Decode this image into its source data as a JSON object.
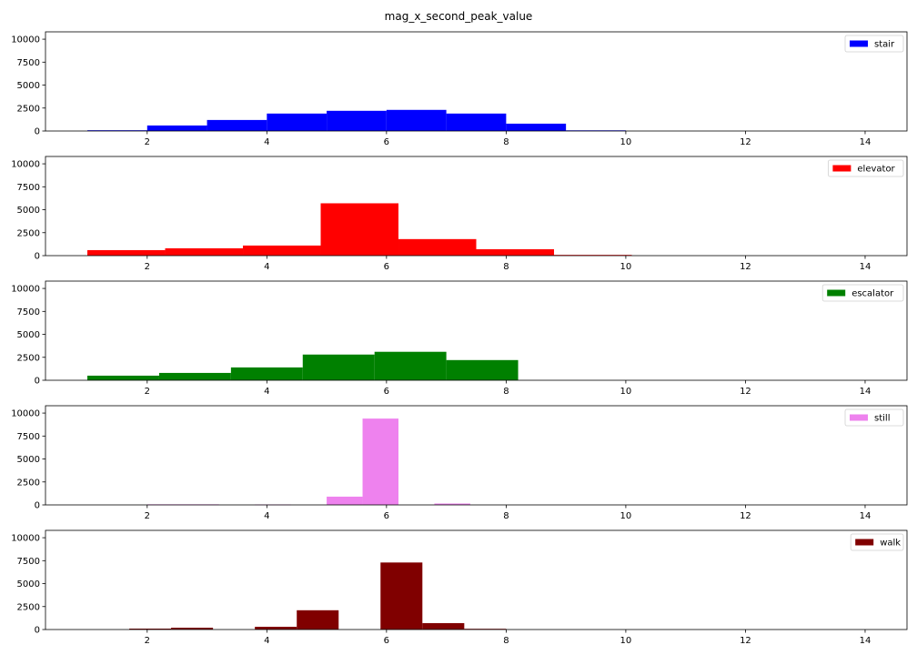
{
  "title": "mag_x_second_peak_value",
  "chart_data": [
    {
      "type": "bar",
      "title": "mag_x_second_peak_value",
      "series_name": "stair",
      "color": "#0000ff",
      "xlim": [
        0.3,
        14.7
      ],
      "ylim": [
        0,
        10800
      ],
      "xticks": [
        2,
        4,
        6,
        8,
        10,
        12,
        14
      ],
      "yticks": [
        0,
        2500,
        5000,
        7500,
        10000
      ],
      "legend_position": "top-right",
      "bins": [
        {
          "x0": 1.0,
          "x1": 2.0,
          "value": 80
        },
        {
          "x0": 2.0,
          "x1": 3.0,
          "value": 600
        },
        {
          "x0": 3.0,
          "x1": 4.0,
          "value": 1200
        },
        {
          "x0": 4.0,
          "x1": 5.0,
          "value": 1900
        },
        {
          "x0": 5.0,
          "x1": 6.0,
          "value": 2200
        },
        {
          "x0": 6.0,
          "x1": 7.0,
          "value": 2300
        },
        {
          "x0": 7.0,
          "x1": 8.0,
          "value": 1900
        },
        {
          "x0": 8.0,
          "x1": 9.0,
          "value": 800
        },
        {
          "x0": 9.0,
          "x1": 10.0,
          "value": 70
        }
      ]
    },
    {
      "type": "bar",
      "series_name": "elevator",
      "color": "#ff0000",
      "xlim": [
        0.3,
        14.7
      ],
      "ylim": [
        0,
        10800
      ],
      "xticks": [
        2,
        4,
        6,
        8,
        10,
        12,
        14
      ],
      "yticks": [
        0,
        2500,
        5000,
        7500,
        10000
      ],
      "legend_position": "top-right",
      "bins": [
        {
          "x0": 1.0,
          "x1": 2.3,
          "value": 600
        },
        {
          "x0": 2.3,
          "x1": 3.6,
          "value": 800
        },
        {
          "x0": 3.6,
          "x1": 4.9,
          "value": 1100
        },
        {
          "x0": 4.9,
          "x1": 6.2,
          "value": 5700
        },
        {
          "x0": 6.2,
          "x1": 7.5,
          "value": 1800
        },
        {
          "x0": 7.5,
          "x1": 8.8,
          "value": 700
        },
        {
          "x0": 8.8,
          "x1": 10.1,
          "value": 80
        }
      ]
    },
    {
      "type": "bar",
      "series_name": "escalator",
      "color": "#008000",
      "xlim": [
        0.3,
        14.7
      ],
      "ylim": [
        0,
        10800
      ],
      "xticks": [
        2,
        4,
        6,
        8,
        10,
        12,
        14
      ],
      "yticks": [
        0,
        2500,
        5000,
        7500,
        10000
      ],
      "legend_position": "top-right",
      "bins": [
        {
          "x0": 1.0,
          "x1": 2.2,
          "value": 500
        },
        {
          "x0": 2.2,
          "x1": 3.4,
          "value": 800
        },
        {
          "x0": 3.4,
          "x1": 4.6,
          "value": 1400
        },
        {
          "x0": 4.6,
          "x1": 5.8,
          "value": 2800
        },
        {
          "x0": 5.8,
          "x1": 7.0,
          "value": 3100
        },
        {
          "x0": 7.0,
          "x1": 8.2,
          "value": 2200
        }
      ]
    },
    {
      "type": "bar",
      "series_name": "still",
      "color": "#ee82ee",
      "xlim": [
        0.3,
        14.7
      ],
      "ylim": [
        0,
        10800
      ],
      "xticks": [
        2,
        4,
        6,
        8,
        10,
        12,
        14
      ],
      "yticks": [
        0,
        2500,
        5000,
        7500,
        10000
      ],
      "legend_position": "top-right",
      "bins": [
        {
          "x0": 2.0,
          "x1": 3.2,
          "value": 60
        },
        {
          "x0": 3.8,
          "x1": 4.4,
          "value": 50
        },
        {
          "x0": 5.0,
          "x1": 5.6,
          "value": 900
        },
        {
          "x0": 5.6,
          "x1": 6.2,
          "value": 9400
        },
        {
          "x0": 6.8,
          "x1": 7.4,
          "value": 150
        }
      ]
    },
    {
      "type": "bar",
      "series_name": "walk",
      "color": "#800000",
      "xlim": [
        0.3,
        14.7
      ],
      "ylim": [
        0,
        10800
      ],
      "xticks": [
        2,
        4,
        6,
        8,
        10,
        12,
        14
      ],
      "yticks": [
        0,
        2500,
        5000,
        7500,
        10000
      ],
      "legend_position": "top-right",
      "bins": [
        {
          "x0": 1.7,
          "x1": 2.4,
          "value": 100
        },
        {
          "x0": 2.4,
          "x1": 3.1,
          "value": 200
        },
        {
          "x0": 3.8,
          "x1": 4.5,
          "value": 300
        },
        {
          "x0": 4.5,
          "x1": 5.2,
          "value": 2100
        },
        {
          "x0": 5.9,
          "x1": 6.6,
          "value": 7300
        },
        {
          "x0": 6.6,
          "x1": 7.3,
          "value": 700
        },
        {
          "x0": 7.3,
          "x1": 8.0,
          "value": 80
        }
      ]
    }
  ]
}
